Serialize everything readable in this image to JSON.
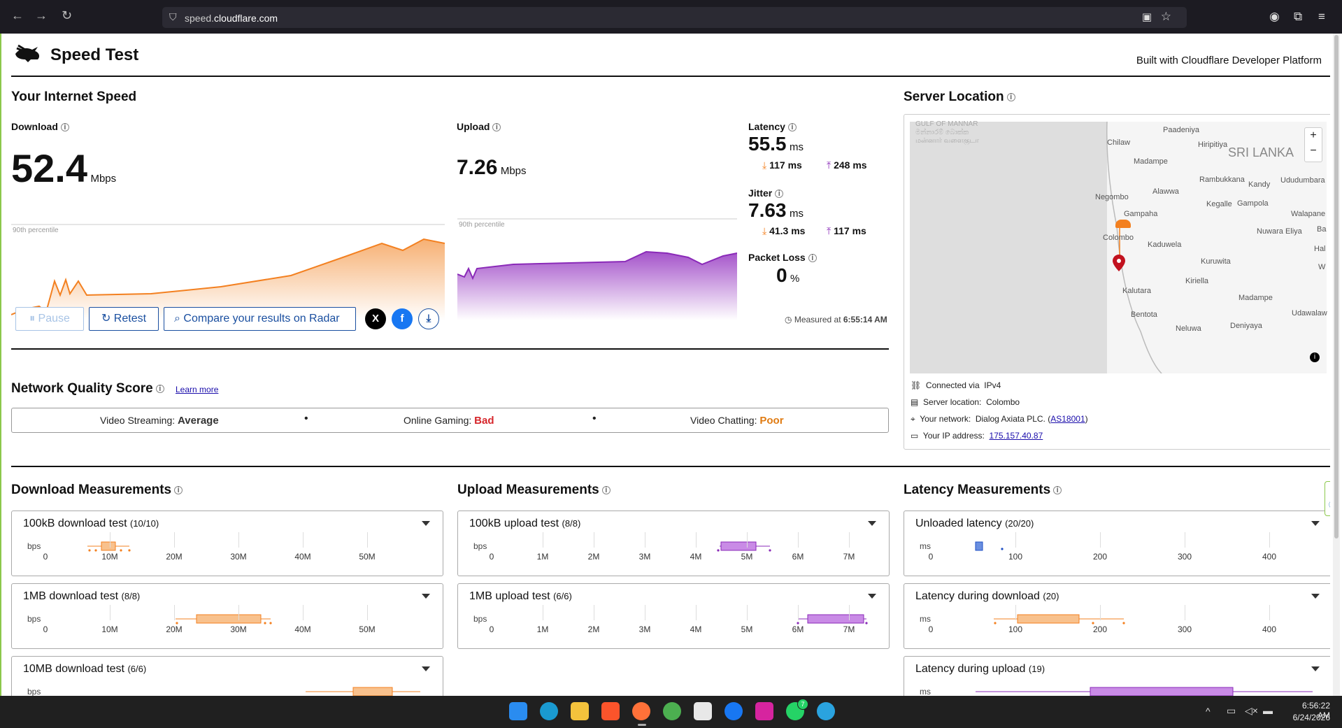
{
  "browser": {
    "url_host": "speed.",
    "url_domain": "cloudflare.com"
  },
  "header": {
    "title": "Speed Test",
    "built_with": "Built with Cloudflare Developer Platform"
  },
  "speed": {
    "section_title": "Your Internet Speed",
    "download_label": "Download",
    "download_value": "52.4",
    "download_unit": "Mbps",
    "upload_label": "Upload",
    "upload_value": "7.26",
    "upload_unit": "Mbps",
    "percentile_label": "90th percentile",
    "latency_label": "Latency",
    "latency_value": "55.5",
    "latency_unit": "ms",
    "latency_down": "117 ms",
    "latency_up": "248 ms",
    "jitter_label": "Jitter",
    "jitter_value": "7.63",
    "jitter_unit": "ms",
    "jitter_down": "41.3 ms",
    "jitter_up": "117 ms",
    "loss_label": "Packet Loss",
    "loss_value": "0",
    "loss_unit": "%",
    "measured_prefix": "Measured at",
    "measured_time": "6:55:14 AM"
  },
  "buttons": {
    "pause": "Pause",
    "retest": "Retest",
    "compare": "Compare your results on Radar"
  },
  "nqs": {
    "title": "Network Quality Score",
    "learn_more": "Learn more",
    "streaming_label": "Video Streaming:",
    "streaming_value": "Average",
    "gaming_label": "Online Gaming:",
    "gaming_value": "Bad",
    "chatting_label": "Video Chatting:",
    "chatting_value": "Poor",
    "colors": {
      "average": "#333333",
      "bad": "#d6262b",
      "poor": "#e07b12"
    }
  },
  "server": {
    "title": "Server Location",
    "connected_label": "Connected via",
    "connected_value": "IPv4",
    "server_label": "Server location:",
    "server_value": "Colombo",
    "network_label": "Your network:",
    "network_value": "Dialog Axiata PLC.",
    "network_as": "AS18001",
    "ip_label": "Your IP address:",
    "ip_value": "175.157.40.87",
    "map_places": [
      "Paadeniya",
      "Chilaw",
      "Hiripitiya",
      "SRI LANKA",
      "Madampe",
      "Rambukkana",
      "Kandy",
      "Ududumbara",
      "Alawwa",
      "Negombo",
      "Kegalle",
      "Gampola",
      "Walapane",
      "Gampaha",
      "Nuwara Eliya",
      "Ba",
      "Colombo",
      "Kaduwela",
      "Hal",
      "Kuruwita",
      "W",
      "Kiriella",
      "Kalutara",
      "Madampe",
      "Bentota",
      "Udawalaw",
      "Neluwa",
      "Deniyaya"
    ],
    "map_faded": [
      "GULF OF MANNAR",
      "மன்னார் வளைகுடா",
      "මන්නාරම් බොක්ක"
    ]
  },
  "download_meas": {
    "title": "Download Measurements",
    "tests": [
      {
        "name": "100kB download test",
        "count": "(10/10)",
        "unit": "bps"
      },
      {
        "name": "1MB download test",
        "count": "(8/8)",
        "unit": "bps"
      },
      {
        "name": "10MB download test",
        "count": "(6/6)",
        "unit": "bps"
      }
    ],
    "ticks": [
      "0",
      "10M",
      "20M",
      "30M",
      "40M",
      "50M"
    ]
  },
  "upload_meas": {
    "title": "Upload Measurements",
    "tests": [
      {
        "name": "100kB upload test",
        "count": "(8/8)",
        "unit": "bps"
      },
      {
        "name": "1MB upload test",
        "count": "(6/6)",
        "unit": "bps"
      }
    ],
    "ticks": [
      "0",
      "1M",
      "2M",
      "3M",
      "4M",
      "5M",
      "6M",
      "7M"
    ]
  },
  "latency_meas": {
    "title": "Latency Measurements",
    "tests": [
      {
        "name": "Unloaded latency",
        "count": "(20/20)",
        "unit": "ms"
      },
      {
        "name": "Latency during download",
        "count": "(20)",
        "unit": "ms"
      },
      {
        "name": "Latency during upload",
        "count": "(19)",
        "unit": "ms"
      }
    ],
    "ticks": [
      "0",
      "100",
      "200",
      "300",
      "400"
    ]
  },
  "taskbar": {
    "time": "6:56:22 AM",
    "date": "6/24/2026",
    "whatsapp_badge": "7"
  }
}
